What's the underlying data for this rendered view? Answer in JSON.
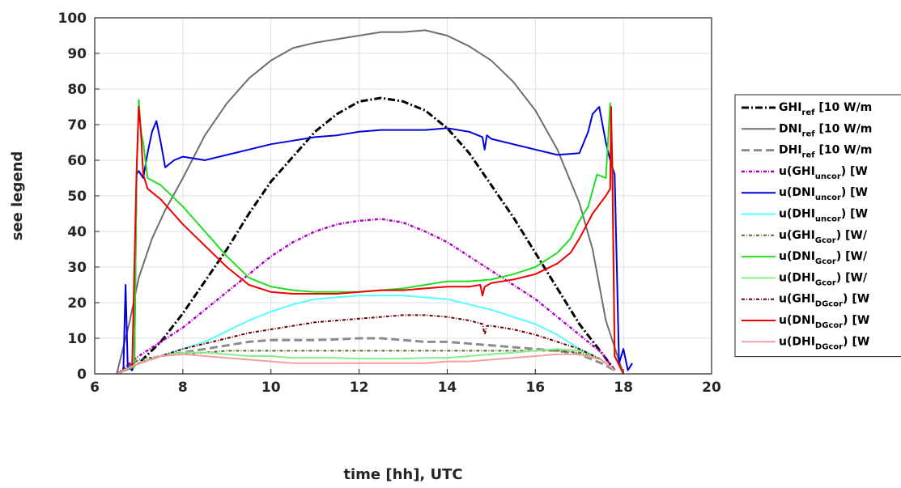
{
  "chart_data": {
    "type": "line",
    "xlabel": "time [hh], UTC",
    "ylabel": "see legend",
    "xlim": [
      6,
      20
    ],
    "ylim": [
      0,
      100
    ],
    "xticks": [
      6,
      8,
      10,
      12,
      14,
      16,
      18,
      20
    ],
    "yticks": [
      0,
      10,
      20,
      30,
      40,
      50,
      60,
      70,
      80,
      90,
      100
    ],
    "grid": true,
    "legend_position": "right",
    "series": [
      {
        "name": "GHI_ref [10 W/m",
        "main": "GHI",
        "sub": "ref",
        "tail": " [10 W/m",
        "color": "#000000",
        "dash": "9,3,2,3",
        "width": 3,
        "x": [
          6.5,
          7,
          7.5,
          8,
          8.5,
          9,
          9.5,
          10,
          10.5,
          11,
          11.5,
          12,
          12.5,
          13,
          13.5,
          14,
          14.5,
          15,
          15.5,
          16,
          16.5,
          17,
          17.5,
          17.8
        ],
        "y": [
          0,
          3,
          9,
          17,
          26,
          35,
          45,
          54,
          61,
          68,
          73,
          76.5,
          77.5,
          76.5,
          74,
          69,
          62,
          53,
          44,
          34,
          24,
          14,
          6,
          1
        ]
      },
      {
        "name": "DNI_ref [10 W/m",
        "main": "DNI",
        "sub": "ref",
        "tail": " [10 W/m",
        "color": "#6e6e6e",
        "dash": "",
        "width": 2,
        "x": [
          6.5,
          6.8,
          7,
          7.3,
          7.6,
          8,
          8.5,
          9,
          9.5,
          10,
          10.5,
          11,
          11.5,
          12,
          12.5,
          13,
          13.5,
          14,
          14.5,
          15,
          15.5,
          16,
          16.5,
          17,
          17.3,
          17.6,
          18
        ],
        "y": [
          0,
          15,
          27,
          38,
          46,
          55,
          67,
          76,
          83,
          88,
          91.5,
          93,
          94,
          95,
          96,
          96,
          96.5,
          95,
          92,
          88,
          82,
          74,
          63,
          48,
          35,
          15,
          0
        ]
      },
      {
        "name": "DHI_ref [10 W/m",
        "main": "DHI",
        "sub": "ref",
        "tail": " [10 W/m",
        "color": "#8c8c8c",
        "dash": "10,5",
        "width": 3,
        "x": [
          6.5,
          7,
          7.5,
          8,
          8.5,
          9,
          9.5,
          10,
          10.5,
          11,
          11.5,
          12,
          12.5,
          13,
          13.5,
          14,
          14.5,
          15,
          15.5,
          16,
          16.5,
          17,
          17.5,
          17.8
        ],
        "y": [
          0,
          3,
          5,
          6,
          7,
          8,
          9,
          9.5,
          9.5,
          9.5,
          9.7,
          10,
          10,
          9.5,
          9,
          9,
          8.5,
          8,
          7.5,
          7,
          6.5,
          5.5,
          3,
          1
        ]
      },
      {
        "name": "u(GHI_uncor) [W",
        "main": "u(GHI",
        "sub": "uncor",
        "tail": ") [W",
        "color": "#b000c8",
        "dash": "4,2,1,2",
        "width": 2.5,
        "x": [
          6.5,
          7,
          7.5,
          8,
          8.5,
          9,
          9.5,
          10,
          10.5,
          11,
          11.5,
          12,
          12.5,
          13,
          13.5,
          14,
          14.5,
          15,
          15.5,
          16,
          16.5,
          17,
          17.5,
          17.8
        ],
        "y": [
          0,
          5,
          9,
          13,
          18,
          23,
          28,
          33,
          37,
          40,
          42,
          43,
          43.5,
          42.5,
          40,
          37,
          33,
          29,
          25,
          21,
          16,
          11,
          6,
          1
        ]
      },
      {
        "name": "u(DNI_uncor) [W",
        "main": "u(DNI",
        "sub": "uncor",
        "tail": ") [W",
        "color": "#0000dd",
        "dash": "",
        "width": 2,
        "x": [
          6.5,
          6.65,
          6.7,
          6.75,
          6.85,
          6.9,
          6.95,
          7.0,
          7.1,
          7.2,
          7.3,
          7.4,
          7.5,
          7.6,
          7.8,
          8,
          8.5,
          9,
          9.5,
          10,
          10.5,
          11,
          11.5,
          12,
          12.5,
          13,
          13.5,
          14,
          14.5,
          14.8,
          14.85,
          14.9,
          15,
          15.5,
          16,
          16.5,
          17,
          17.2,
          17.3,
          17.45,
          17.6,
          17.7,
          17.75,
          17.8,
          17.9,
          18.0,
          18.1,
          18.2
        ],
        "y": [
          0,
          1,
          25,
          2,
          1,
          3,
          56,
          57,
          55,
          62,
          68,
          71,
          65,
          58,
          60,
          61,
          60,
          61.5,
          63,
          64.5,
          65.5,
          66.5,
          67,
          68,
          68.5,
          68.5,
          68.5,
          69,
          68,
          66.5,
          63,
          67,
          66,
          64.5,
          63,
          61.5,
          62,
          68,
          73,
          75,
          65,
          60,
          58,
          56,
          3,
          7,
          1,
          3
        ]
      },
      {
        "name": "u(DHI_uncor) [W",
        "main": "u(DHI",
        "sub": "uncor",
        "tail": ") [W",
        "color": "#55ffff",
        "dash": "",
        "width": 2,
        "x": [
          6.5,
          7,
          7.5,
          8,
          8.5,
          9,
          9.5,
          10,
          10.5,
          11,
          11.5,
          12,
          12.5,
          13,
          13.5,
          14,
          14.5,
          15,
          15.5,
          16,
          16.5,
          17,
          17.5,
          17.8
        ],
        "y": [
          0,
          3,
          5,
          7,
          9,
          12,
          15,
          17.5,
          19.5,
          21,
          21.5,
          22,
          22,
          22,
          21.5,
          21,
          19.5,
          18,
          16,
          14,
          11,
          7,
          4,
          1
        ]
      },
      {
        "name": "u(GHI_Gcor) [W/",
        "main": "u(GHI",
        "sub": "Gcor",
        "tail": ") [W/",
        "color": "#556b2f",
        "dash": "4,2,1,2",
        "width": 2,
        "x": [
          6.5,
          7,
          7.5,
          8,
          8.5,
          9,
          9.5,
          10,
          10.5,
          11,
          11.5,
          12,
          12.5,
          13,
          13.5,
          14,
          14.5,
          15,
          15.5,
          16,
          16.5,
          17,
          17.5,
          17.8
        ],
        "y": [
          0,
          4,
          5,
          5.5,
          6,
          6.5,
          6.5,
          6.5,
          6.5,
          6.5,
          6.5,
          6.5,
          6.5,
          6.5,
          6.5,
          6.5,
          6.5,
          6.5,
          6.5,
          6.5,
          6.5,
          6,
          4,
          1
        ]
      },
      {
        "name": "u(DNI_Gcor) [W/",
        "main": "u(DNI",
        "sub": "Gcor",
        "tail": ") [W/",
        "color": "#22dd22",
        "dash": "",
        "width": 2,
        "x": [
          6.5,
          6.9,
          6.95,
          7.0,
          7.05,
          7.1,
          7.2,
          7.5,
          8,
          8.5,
          9,
          9.5,
          10,
          10.5,
          11,
          11.5,
          12,
          12.5,
          13,
          13.5,
          14,
          14.5,
          15,
          15.5,
          16,
          16.5,
          16.8,
          17,
          17.2,
          17.4,
          17.6,
          17.7,
          17.75,
          17.8,
          18
        ],
        "y": [
          0,
          2,
          55,
          77,
          68,
          65,
          55,
          53,
          47,
          40,
          33,
          27,
          24.5,
          23.5,
          23,
          23,
          23,
          23.5,
          24,
          25,
          26,
          26,
          26.5,
          28,
          30,
          34,
          38,
          43,
          47,
          56,
          55,
          76,
          60,
          5,
          0
        ]
      },
      {
        "name": "u(DHI_Gcor) [W/",
        "main": "u(DHI",
        "sub": "Gcor",
        "tail": ") [W/",
        "color": "#88ee88",
        "dash": "",
        "width": 2,
        "x": [
          6.5,
          7,
          7.5,
          8,
          8.5,
          9,
          9.5,
          10,
          10.5,
          11,
          11.5,
          12,
          12.5,
          13,
          13.5,
          14,
          14.5,
          15,
          15.5,
          16,
          16.5,
          17,
          17.5,
          17.8
        ],
        "y": [
          0,
          3,
          5,
          6,
          6,
          5.5,
          5,
          5,
          4.5,
          4.5,
          4.5,
          4.3,
          4.3,
          4.3,
          4.5,
          4.5,
          5,
          5.5,
          6,
          6.5,
          7,
          6.5,
          4,
          1
        ]
      },
      {
        "name": "u(GHI_DGcor) [W",
        "main": "u(GHI",
        "sub": "DGcor",
        "tail": ") [W",
        "color": "#6b0000",
        "dash": "4,2,1,2",
        "width": 2,
        "x": [
          6.5,
          7,
          7.5,
          8,
          8.5,
          9,
          9.5,
          10,
          10.5,
          11,
          11.5,
          12,
          12.5,
          13,
          13.5,
          14,
          14.5,
          14.8,
          14.85,
          14.9,
          15,
          15.5,
          16,
          16.5,
          17,
          17.5,
          17.8
        ],
        "y": [
          0,
          3,
          5,
          7,
          8.5,
          10,
          11.5,
          12.5,
          13.5,
          14.5,
          15,
          15.5,
          16,
          16.5,
          16.5,
          16,
          15,
          14,
          11,
          13.5,
          13.5,
          12.5,
          11,
          9,
          7,
          4,
          1
        ]
      },
      {
        "name": "u(DNI_DGcor) [W",
        "main": "u(DNI",
        "sub": "DGcor",
        "tail": ") [W",
        "color": "#ee0000",
        "dash": "",
        "width": 2,
        "x": [
          6.5,
          6.85,
          6.9,
          6.95,
          7.0,
          7.05,
          7.1,
          7.2,
          7.5,
          8,
          8.5,
          9,
          9.5,
          10,
          10.5,
          11,
          11.5,
          12,
          12.5,
          13,
          13.5,
          14,
          14.5,
          14.75,
          14.8,
          14.85,
          15,
          15.5,
          16,
          16.5,
          16.8,
          17,
          17.3,
          17.6,
          17.7,
          17.72,
          17.75,
          17.8,
          18
        ],
        "y": [
          0,
          2,
          30,
          57,
          75,
          68,
          56,
          52,
          49,
          42,
          36,
          30,
          25,
          23,
          22.5,
          22.5,
          22.5,
          23,
          23.5,
          23.5,
          24,
          24.5,
          24.5,
          25,
          22,
          24.5,
          25.5,
          26.5,
          28,
          31,
          34,
          38,
          45,
          50,
          52,
          75,
          55,
          5,
          0
        ]
      },
      {
        "name": "u(DHI_DGcor) [W",
        "main": "u(DHI",
        "sub": "DGcor",
        "tail": ") [W",
        "color": "#f4a0a0",
        "dash": "",
        "width": 2,
        "x": [
          6.5,
          7,
          7.5,
          8,
          8.5,
          9,
          9.5,
          10,
          10.5,
          11,
          11.5,
          12,
          12.5,
          13,
          13.5,
          14,
          14.5,
          15,
          15.5,
          16,
          16.5,
          17,
          17.5,
          17.8
        ],
        "y": [
          0,
          3,
          5,
          5.5,
          5,
          4.5,
          4,
          3.5,
          3,
          3,
          3,
          3,
          3,
          3,
          3,
          3.5,
          3.5,
          4,
          4.5,
          5,
          5.5,
          5.5,
          4,
          1
        ]
      }
    ]
  }
}
